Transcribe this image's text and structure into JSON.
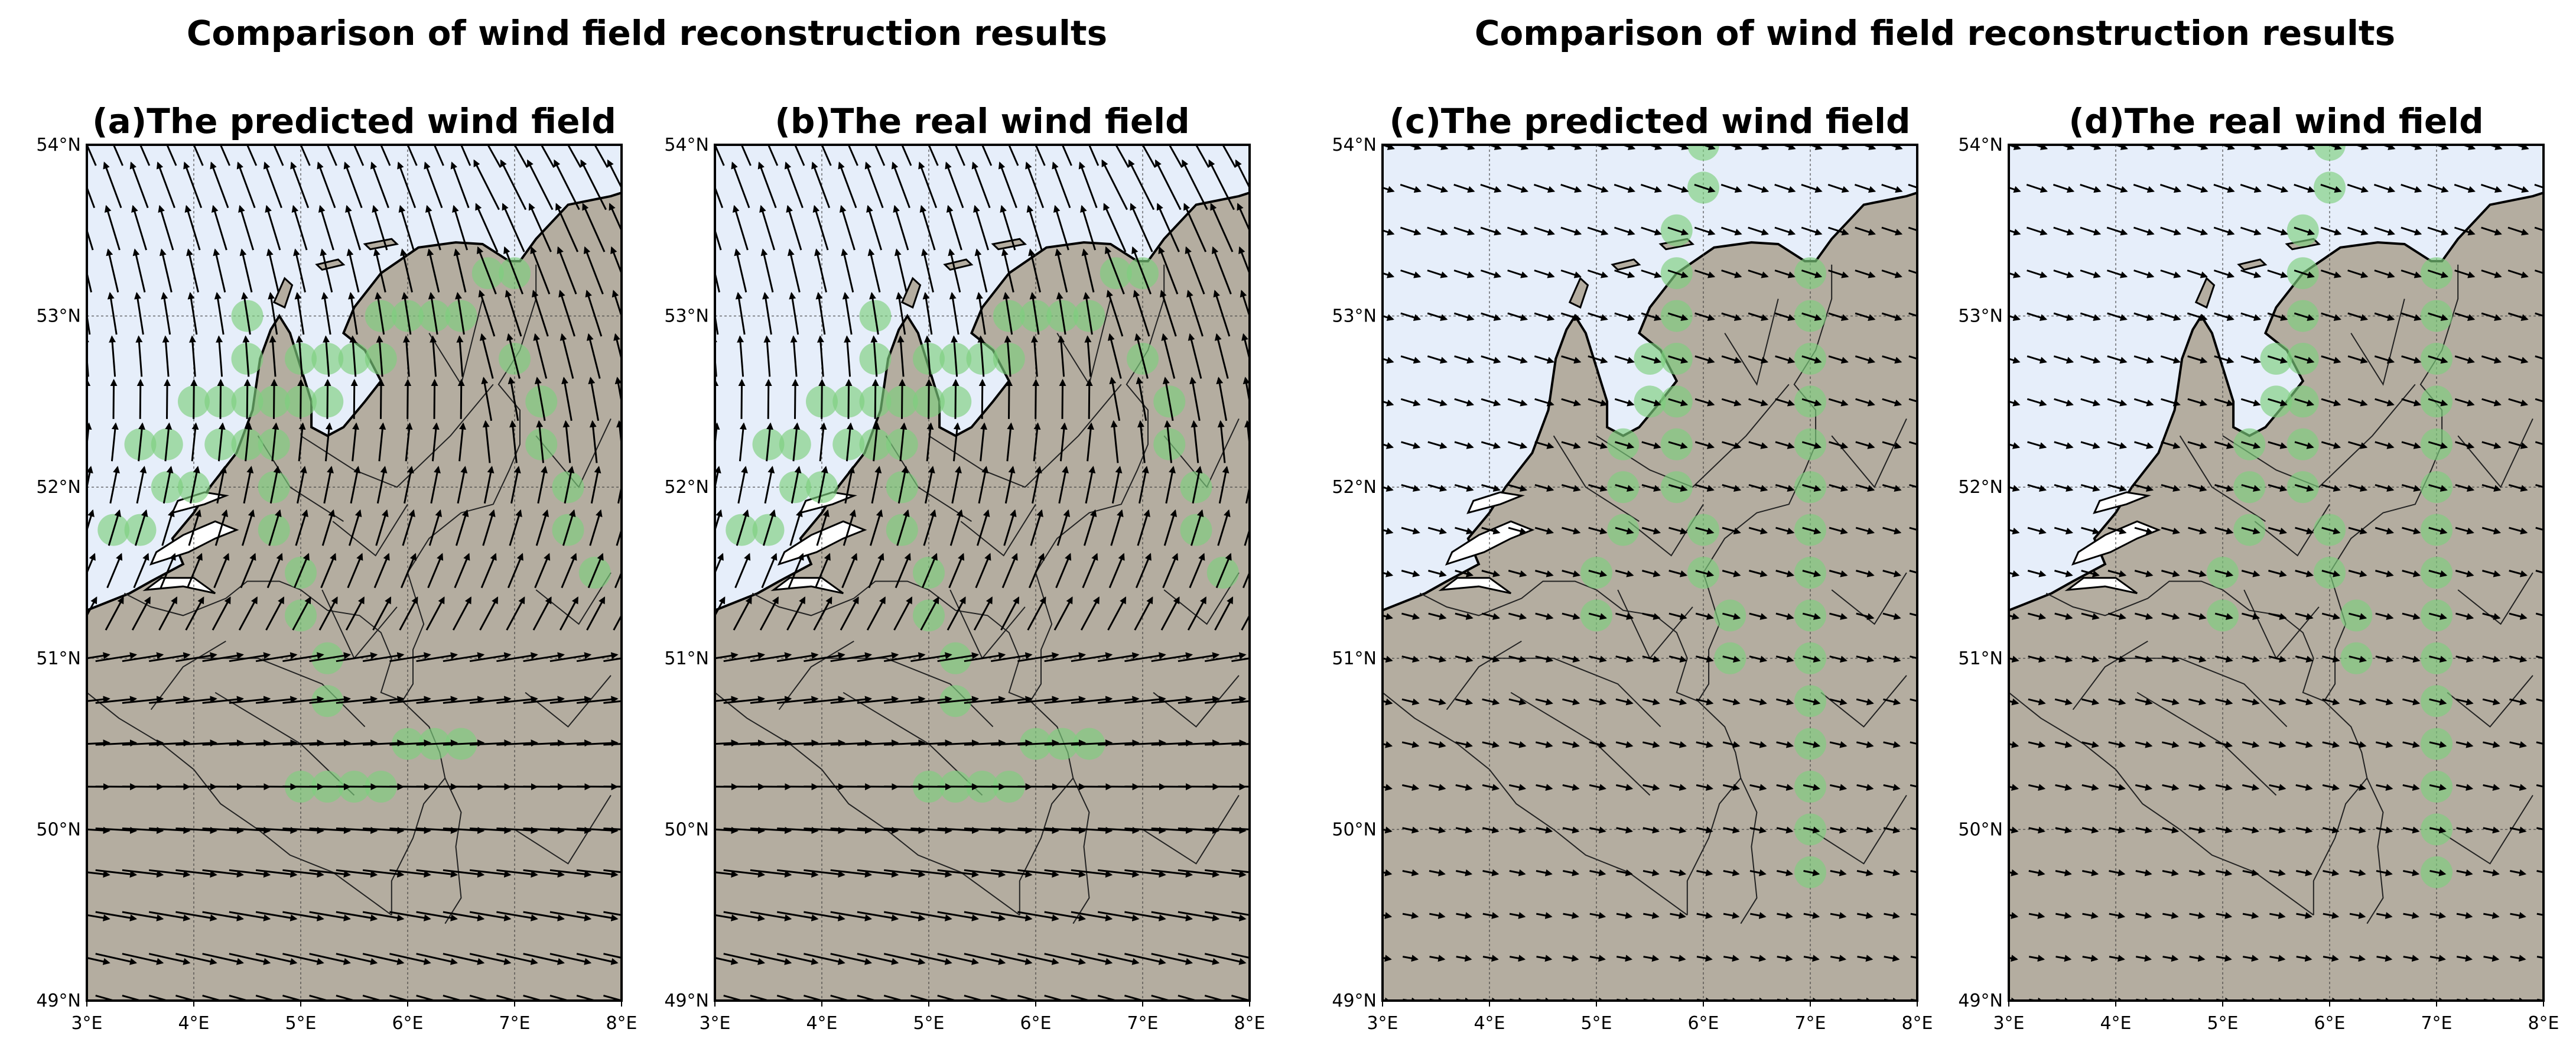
{
  "figure": {
    "suptitles": [
      "Comparison of wind field reconstruction results",
      "Comparison of wind field reconstruction results"
    ]
  },
  "panels": [
    {
      "id": "a",
      "title": "(a)The predicted wind field",
      "pattern": "strong",
      "stations": "set1"
    },
    {
      "id": "b",
      "title": "(b)The real wind field",
      "pattern": "strong",
      "stations": "set1"
    },
    {
      "id": "c",
      "title": "(c)The predicted wind field",
      "pattern": "weak",
      "stations": "set2"
    },
    {
      "id": "d",
      "title": "(d)The real wind field",
      "pattern": "weak",
      "stations": "set2"
    }
  ],
  "axes": {
    "lon_range": [
      3,
      8
    ],
    "lat_range": [
      49,
      54
    ],
    "lon_ticks": [
      "3°E",
      "4°E",
      "5°E",
      "6°E",
      "7°E",
      "8°E"
    ],
    "lat_ticks": [
      "49°N",
      "50°N",
      "51°N",
      "52°N",
      "53°N",
      "54°N"
    ],
    "grid": true
  },
  "colors": {
    "sea": "#e6eefa",
    "land": "#b4ada0",
    "station": "#7ed07e",
    "arrow": "#000000"
  },
  "stations": {
    "set1": [
      [
        3.25,
        51.75
      ],
      [
        3.5,
        51.75
      ],
      [
        3.5,
        52.25
      ],
      [
        3.75,
        52.25
      ],
      [
        3.75,
        52.0
      ],
      [
        4.0,
        52.0
      ],
      [
        4.0,
        52.5
      ],
      [
        4.25,
        52.5
      ],
      [
        4.25,
        52.25
      ],
      [
        4.5,
        52.5
      ],
      [
        4.5,
        52.25
      ],
      [
        4.5,
        53.0
      ],
      [
        4.5,
        52.75
      ],
      [
        4.75,
        52.5
      ],
      [
        4.75,
        52.25
      ],
      [
        4.75,
        52.0
      ],
      [
        4.75,
        51.75
      ],
      [
        5.0,
        52.5
      ],
      [
        5.0,
        52.75
      ],
      [
        5.25,
        52.75
      ],
      [
        5.25,
        52.5
      ],
      [
        5.5,
        52.75
      ],
      [
        5.75,
        52.75
      ],
      [
        5.75,
        53.0
      ],
      [
        6.0,
        53.0
      ],
      [
        6.25,
        53.0
      ],
      [
        6.5,
        53.0
      ],
      [
        6.75,
        53.25
      ],
      [
        7.0,
        53.25
      ],
      [
        7.0,
        52.75
      ],
      [
        7.25,
        52.5
      ],
      [
        7.25,
        52.25
      ],
      [
        7.5,
        52.0
      ],
      [
        7.5,
        51.75
      ],
      [
        7.75,
        51.5
      ],
      [
        5.0,
        51.5
      ],
      [
        5.0,
        51.25
      ],
      [
        5.25,
        51.0
      ],
      [
        5.25,
        50.75
      ],
      [
        6.0,
        50.5
      ],
      [
        6.25,
        50.5
      ],
      [
        6.5,
        50.5
      ],
      [
        5.0,
        50.25
      ],
      [
        5.25,
        50.25
      ],
      [
        5.5,
        50.25
      ],
      [
        5.75,
        50.25
      ]
    ],
    "set2": [
      [
        6.0,
        54.0
      ],
      [
        6.0,
        53.75
      ],
      [
        5.75,
        53.5
      ],
      [
        5.75,
        53.25
      ],
      [
        5.75,
        53.0
      ],
      [
        5.5,
        52.75
      ],
      [
        5.75,
        52.75
      ],
      [
        5.5,
        52.5
      ],
      [
        5.75,
        52.5
      ],
      [
        5.25,
        52.25
      ],
      [
        5.75,
        52.25
      ],
      [
        5.25,
        52.0
      ],
      [
        5.75,
        52.0
      ],
      [
        5.25,
        51.75
      ],
      [
        6.0,
        51.75
      ],
      [
        5.0,
        51.5
      ],
      [
        6.0,
        51.5
      ],
      [
        5.0,
        51.25
      ],
      [
        6.25,
        51.25
      ],
      [
        6.25,
        51.0
      ],
      [
        7.0,
        53.25
      ],
      [
        7.0,
        53.0
      ],
      [
        7.0,
        52.75
      ],
      [
        7.0,
        52.5
      ],
      [
        7.0,
        52.25
      ],
      [
        7.0,
        52.0
      ],
      [
        7.0,
        51.75
      ],
      [
        7.0,
        51.5
      ],
      [
        7.0,
        51.25
      ],
      [
        7.0,
        51.0
      ],
      [
        7.0,
        50.75
      ],
      [
        7.0,
        50.5
      ],
      [
        7.0,
        50.25
      ],
      [
        7.0,
        50.0
      ],
      [
        7.0,
        49.75
      ]
    ]
  },
  "geography": {
    "coastline": [
      [
        3.0,
        51.28
      ],
      [
        3.4,
        51.38
      ],
      [
        3.6,
        51.45
      ],
      [
        3.9,
        51.55
      ],
      [
        3.8,
        51.7
      ],
      [
        4.0,
        51.85
      ],
      [
        4.15,
        52.0
      ],
      [
        4.4,
        52.2
      ],
      [
        4.55,
        52.45
      ],
      [
        4.62,
        52.75
      ],
      [
        4.72,
        52.92
      ],
      [
        4.8,
        53.0
      ],
      [
        4.9,
        52.9
      ],
      [
        5.0,
        52.7
      ],
      [
        5.1,
        52.5
      ],
      [
        5.1,
        52.35
      ],
      [
        5.25,
        52.3
      ],
      [
        5.4,
        52.35
      ],
      [
        5.6,
        52.5
      ],
      [
        5.75,
        52.62
      ],
      [
        5.6,
        52.8
      ],
      [
        5.4,
        52.9
      ],
      [
        5.5,
        53.05
      ],
      [
        5.75,
        53.25
      ],
      [
        6.1,
        53.4
      ],
      [
        6.45,
        53.43
      ],
      [
        6.7,
        53.42
      ],
      [
        6.95,
        53.32
      ],
      [
        7.05,
        53.32
      ],
      [
        7.2,
        53.45
      ],
      [
        7.5,
        53.65
      ],
      [
        7.9,
        53.7
      ],
      [
        8.0,
        53.72
      ],
      [
        8.0,
        49.0
      ],
      [
        3.0,
        49.0
      ]
    ],
    "islands": [
      [
        [
          4.75,
          53.08
        ],
        [
          4.85,
          53.22
        ],
        [
          4.92,
          53.18
        ],
        [
          4.85,
          53.05
        ]
      ],
      [
        [
          5.15,
          53.3
        ],
        [
          5.35,
          53.33
        ],
        [
          5.4,
          53.3
        ],
        [
          5.2,
          53.27
        ]
      ],
      [
        [
          5.6,
          53.42
        ],
        [
          5.85,
          53.45
        ],
        [
          5.9,
          53.42
        ],
        [
          5.65,
          53.39
        ]
      ]
    ],
    "borders": [
      [
        [
          3.35,
          51.38
        ],
        [
          3.6,
          51.3
        ],
        [
          3.9,
          51.25
        ],
        [
          4.3,
          51.35
        ],
        [
          4.5,
          51.45
        ],
        [
          4.8,
          51.45
        ],
        [
          5.0,
          51.4
        ],
        [
          5.25,
          51.28
        ],
        [
          5.55,
          51.25
        ],
        [
          5.75,
          51.15
        ],
        [
          5.85,
          51.0
        ],
        [
          5.75,
          50.8
        ],
        [
          5.95,
          50.75
        ],
        [
          6.05,
          50.85
        ],
        [
          6.05,
          51.05
        ],
        [
          6.15,
          51.2
        ],
        [
          6.0,
          51.5
        ],
        [
          6.2,
          51.7
        ],
        [
          6.5,
          51.85
        ],
        [
          6.8,
          51.9
        ],
        [
          6.95,
          52.1
        ],
        [
          7.05,
          52.25
        ],
        [
          7.05,
          52.45
        ],
        [
          6.85,
          52.6
        ],
        [
          7.05,
          52.8
        ],
        [
          7.2,
          53.1
        ],
        [
          7.2,
          53.3
        ]
      ],
      [
        [
          5.95,
          50.75
        ],
        [
          6.2,
          50.6
        ],
        [
          6.3,
          50.45
        ],
        [
          6.35,
          50.3
        ],
        [
          6.15,
          50.15
        ],
        [
          6.05,
          49.95
        ],
        [
          5.85,
          49.7
        ],
        [
          5.85,
          49.5
        ]
      ],
      [
        [
          6.35,
          50.3
        ],
        [
          6.5,
          50.1
        ],
        [
          6.45,
          49.9
        ],
        [
          6.5,
          49.6
        ],
        [
          6.35,
          49.45
        ]
      ],
      [
        [
          3.0,
          50.8
        ],
        [
          3.3,
          50.65
        ],
        [
          3.7,
          50.5
        ],
        [
          4.0,
          50.35
        ],
        [
          4.25,
          50.15
        ],
        [
          4.6,
          50.0
        ],
        [
          4.9,
          49.85
        ],
        [
          5.3,
          49.75
        ],
        [
          5.85,
          49.5
        ]
      ],
      [
        [
          4.0,
          51.0
        ],
        [
          4.6,
          51.0
        ],
        [
          5.2,
          50.85
        ],
        [
          5.6,
          50.6
        ]
      ],
      [
        [
          4.2,
          50.8
        ],
        [
          4.6,
          50.65
        ],
        [
          5.0,
          50.5
        ],
        [
          5.5,
          50.2
        ]
      ],
      [
        [
          3.6,
          50.7
        ],
        [
          3.9,
          50.95
        ],
        [
          4.3,
          51.1
        ]
      ],
      [
        [
          5.0,
          52.3
        ],
        [
          5.5,
          52.1
        ],
        [
          5.9,
          52.0
        ],
        [
          6.4,
          52.3
        ],
        [
          6.8,
          52.6
        ]
      ],
      [
        [
          5.3,
          51.8
        ],
        [
          5.7,
          51.6
        ],
        [
          6.0,
          51.9
        ]
      ],
      [
        [
          4.6,
          52.3
        ],
        [
          4.9,
          52.0
        ],
        [
          5.4,
          51.8
        ]
      ],
      [
        [
          6.2,
          52.9
        ],
        [
          6.5,
          52.6
        ],
        [
          6.7,
          53.1
        ]
      ],
      [
        [
          5.2,
          51.4
        ],
        [
          5.5,
          51.0
        ],
        [
          5.9,
          51.3
        ]
      ],
      [
        [
          7.2,
          51.4
        ],
        [
          7.6,
          51.2
        ],
        [
          7.9,
          51.5
        ]
      ],
      [
        [
          7.1,
          50.8
        ],
        [
          7.5,
          50.6
        ],
        [
          7.9,
          50.9
        ]
      ],
      [
        [
          7.0,
          50.0
        ],
        [
          7.5,
          49.8
        ],
        [
          7.9,
          50.2
        ]
      ],
      [
        [
          7.2,
          52.3
        ],
        [
          7.6,
          52.0
        ],
        [
          7.9,
          52.4
        ]
      ]
    ],
    "inland_water": [
      [
        [
          3.6,
          51.55
        ],
        [
          3.95,
          51.62
        ],
        [
          4.2,
          51.7
        ],
        [
          4.4,
          51.75
        ],
        [
          4.2,
          51.8
        ],
        [
          3.9,
          51.72
        ],
        [
          3.65,
          51.62
        ]
      ],
      [
        [
          3.55,
          51.4
        ],
        [
          3.9,
          51.42
        ],
        [
          4.2,
          51.38
        ],
        [
          4.0,
          51.47
        ],
        [
          3.7,
          51.47
        ]
      ],
      [
        [
          3.8,
          51.85
        ],
        [
          4.1,
          51.9
        ],
        [
          4.3,
          51.95
        ],
        [
          4.1,
          51.97
        ],
        [
          3.85,
          51.92
        ]
      ]
    ]
  }
}
